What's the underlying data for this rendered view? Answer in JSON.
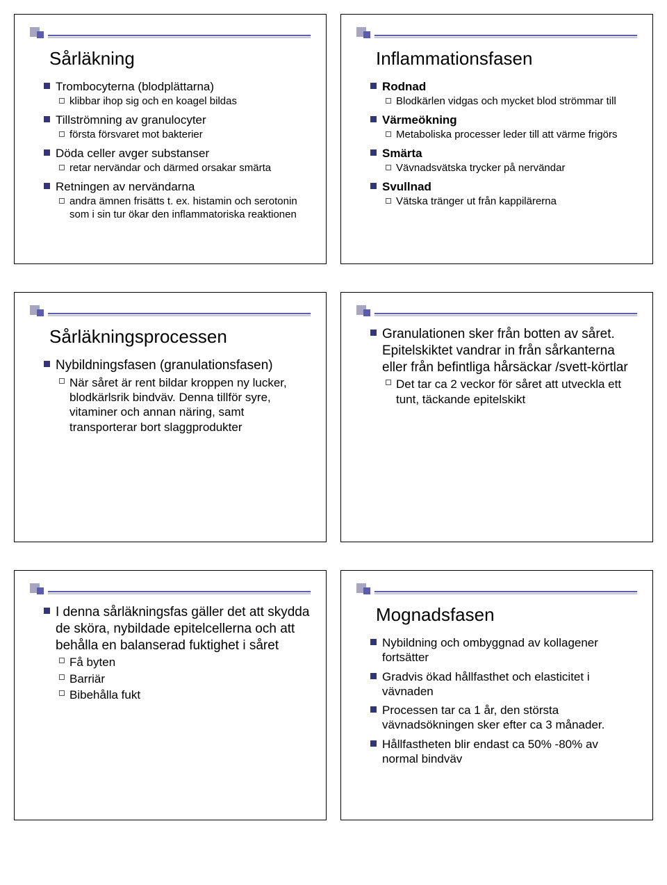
{
  "slides": [
    {
      "title": "Sårläkning",
      "items": [
        {
          "level": 1,
          "text": "Trombocyterna (blodplättarna)"
        },
        {
          "level": 2,
          "text": "klibbar ihop sig och en koagel bildas"
        },
        {
          "level": 1,
          "text": "Tillströmning av granulocyter"
        },
        {
          "level": 2,
          "text": "första försvaret mot bakterier"
        },
        {
          "level": 1,
          "text": "Döda celler avger substanser"
        },
        {
          "level": 2,
          "text": "retar nervändar och därmed orsakar smärta"
        },
        {
          "level": 1,
          "text": "Retningen av nervändarna"
        },
        {
          "level": 2,
          "text": "andra ämnen frisätts t. ex. histamin och serotonin som i sin tur ökar den inflammatoriska reaktionen"
        }
      ]
    },
    {
      "title": "Inflammationsfasen",
      "items": [
        {
          "level": 1,
          "text": "Rodnad",
          "bold": true
        },
        {
          "level": 2,
          "text": "Blodkärlen vidgas och mycket blod strömmar till"
        },
        {
          "level": 1,
          "text": "Värmeökning",
          "bold": true
        },
        {
          "level": 2,
          "text": "Metaboliska processer leder till att värme frigörs"
        },
        {
          "level": 1,
          "text": "Smärta",
          "bold": true
        },
        {
          "level": 2,
          "text": "Vävnadsvätska trycker på nervändar"
        },
        {
          "level": 1,
          "text": "Svullnad",
          "bold": true
        },
        {
          "level": 2,
          "text": "Vätska tränger ut från kappilärerna"
        }
      ]
    },
    {
      "title": "Sårläkningsprocessen",
      "items": [
        {
          "level": 1,
          "big": true,
          "text": "Nybildningsfasen (granulationsfasen)"
        },
        {
          "level": 2,
          "big": true,
          "text": "När såret är rent bildar kroppen ny lucker, blodkärlsrik bindväv.\nDenna tillför syre, vitaminer och annan näring, samt transporterar bort slaggprodukter"
        }
      ]
    },
    {
      "title": "",
      "items": [
        {
          "level": 1,
          "big": true,
          "text": "Granulationen sker från botten av såret. Epitelskiktet vandrar in från sårkanterna eller från befintliga hårsäckar /svett-körtlar"
        },
        {
          "level": 2,
          "big": true,
          "text": "Det tar ca 2 veckor för såret att utveckla ett tunt, täckande epitelskikt"
        }
      ]
    },
    {
      "title": "",
      "items": [
        {
          "level": 1,
          "big": true,
          "text": "I denna sårläkningsfas gäller det att skydda de sköra, nybildade epitelcellerna och att behålla en balanserad fuktighet i såret"
        },
        {
          "level": 2,
          "big": true,
          "text": "Få byten"
        },
        {
          "level": 2,
          "big": true,
          "text": "Barriär"
        },
        {
          "level": 2,
          "big": true,
          "text": "Bibehålla fukt"
        }
      ]
    },
    {
      "title": "Mognadsfasen",
      "items": [
        {
          "level": 1,
          "text": "Nybildning och ombyggnad av kollagener fortsätter"
        },
        {
          "level": 1,
          "text": " Gradvis ökad hållfasthet och elasticitet i vävnaden"
        },
        {
          "level": 1,
          "text": " Processen tar ca 1 år, den största vävnadsökningen sker efter ca 3 månader."
        },
        {
          "level": 1,
          "text": " Hållfastheten blir endast ca 50% -80% av normal bindväv"
        }
      ]
    }
  ]
}
